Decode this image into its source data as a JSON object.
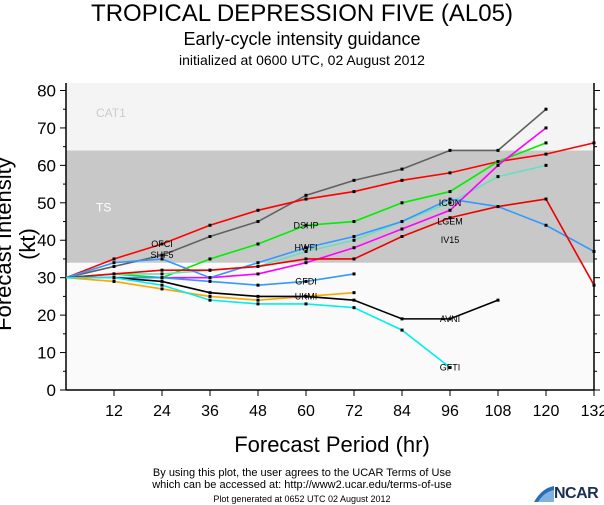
{
  "chart_data": {
    "type": "line",
    "title": "TROPICAL DEPRESSION FIVE (AL05)",
    "subtitle": "Early-cycle intensity guidance",
    "initialized": "initialized at 0600 UTC, 02 August 2012",
    "xlabel": "Forecast Period (hr)",
    "ylabel": "Forecast Intensity (kt)",
    "xlim": [
      0,
      132
    ],
    "ylim": [
      0,
      82
    ],
    "xticks": [
      12,
      24,
      36,
      48,
      60,
      72,
      84,
      96,
      108,
      120,
      132
    ],
    "yticks": [
      0,
      10,
      20,
      30,
      40,
      50,
      60,
      70,
      80
    ],
    "bands": [
      {
        "name": "TS",
        "from": 34,
        "to": 64,
        "color": "#c8c8c8"
      },
      {
        "name": "CAT1",
        "from": 64,
        "to": 82,
        "color": "#f4f4f4"
      }
    ],
    "series": [
      {
        "name": "SHF5",
        "color": "#606060",
        "label_at": 2,
        "x": [
          0,
          12,
          24,
          36,
          48,
          60,
          72,
          84,
          96,
          108,
          120
        ],
        "values": [
          30,
          33,
          36,
          41,
          45,
          52,
          56,
          59,
          64,
          64,
          75
        ]
      },
      {
        "name": "OFCI",
        "color": "#ff0000",
        "label_at": 2,
        "x": [
          0,
          12,
          24,
          36,
          48,
          60,
          72,
          84,
          96,
          108,
          120,
          132
        ],
        "values": [
          30,
          35,
          39,
          44,
          48,
          51,
          53,
          56,
          58,
          61,
          63,
          66
        ]
      },
      {
        "name": "DSHP",
        "color": "#00ee00",
        "label_at": 5,
        "x": [
          0,
          12,
          24,
          36,
          48,
          60,
          72,
          84,
          96,
          108,
          120
        ],
        "values": [
          30,
          31,
          30,
          35,
          39,
          44,
          45,
          50,
          53,
          61,
          66
        ]
      },
      {
        "name": "ICON",
        "color": "#66e0c0",
        "label_at": 8,
        "x": [
          0,
          12,
          24,
          36,
          48,
          60,
          72,
          84,
          96,
          108,
          120
        ],
        "values": [
          30,
          31,
          31,
          32,
          33,
          37,
          40,
          45,
          50,
          57,
          60
        ]
      },
      {
        "name": "LGEM",
        "color": "#ff00ff",
        "label_at": 8,
        "x": [
          0,
          12,
          24,
          36,
          48,
          60,
          72,
          84,
          96,
          108,
          120
        ],
        "values": [
          30,
          30,
          30,
          30,
          31,
          34,
          38,
          43,
          48,
          60,
          70
        ]
      },
      {
        "name": "HWFI",
        "color": "#3399ff",
        "label_at": 5,
        "x": [
          0,
          12,
          24,
          36,
          48,
          60,
          72,
          84,
          96,
          108,
          120,
          132
        ],
        "values": [
          30,
          34,
          35,
          30,
          34,
          38,
          41,
          45,
          51,
          49,
          44,
          37
        ]
      },
      {
        "name": "IV15",
        "color": "#ee0000",
        "label_at": 8,
        "x": [
          0,
          12,
          24,
          36,
          48,
          60,
          72,
          84,
          96,
          108,
          120,
          132
        ],
        "values": [
          30,
          31,
          32,
          32,
          33,
          35,
          35,
          41,
          46,
          49,
          51,
          28
        ]
      },
      {
        "name": "GFDI",
        "color": "#3399ff",
        "label_at": 5,
        "x": [
          0,
          12,
          24,
          36,
          48,
          60,
          72
        ],
        "values": [
          30,
          30,
          30,
          29,
          28,
          29,
          31
        ]
      },
      {
        "name": "UKMI",
        "color": "#ffa500",
        "label_at": 5,
        "x": [
          0,
          12,
          24,
          36,
          48,
          60,
          72
        ],
        "values": [
          30,
          29,
          27,
          25,
          24,
          25,
          26
        ]
      },
      {
        "name": "AVNI",
        "color": "#000000",
        "label_at": 8,
        "x": [
          0,
          12,
          24,
          36,
          48,
          60,
          72,
          84,
          96,
          108
        ],
        "values": [
          30,
          30,
          29,
          26,
          25,
          25,
          24,
          19,
          19,
          24
        ]
      },
      {
        "name": "GFTI",
        "color": "#00eeee",
        "label_at": 8,
        "x": [
          0,
          12,
          24,
          36,
          48,
          60,
          72,
          84,
          96
        ],
        "values": [
          30,
          30,
          28,
          24,
          23,
          23,
          22,
          16,
          6
        ]
      }
    ]
  },
  "footer": {
    "terms1": "By using this plot, the user agrees to the UCAR Terms of Use",
    "terms2": "which can be accessed at: http://www2.ucar.edu/terms-of-use",
    "generated": "Plot generated at 0652 UTC   02 August 2012",
    "logo": "NCAR"
  }
}
